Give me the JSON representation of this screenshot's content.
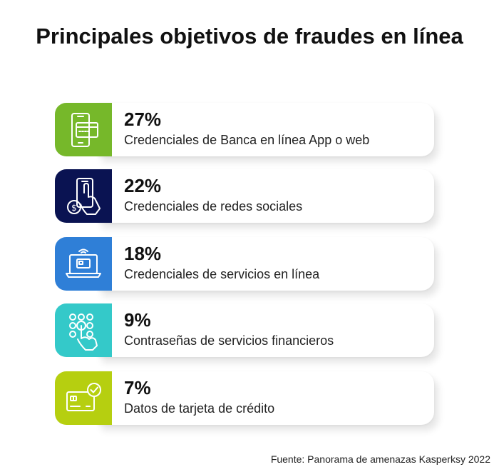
{
  "title": "Principales objetivos de fraudes en línea",
  "source": "Fuente: Panorama de amenazas Kasperksy 2022",
  "chart_data": {
    "type": "bar",
    "title": "Principales objetivos de fraudes en línea",
    "categories": [
      "Credenciales de Banca en línea App o web",
      "Credenciales de redes sociales",
      "Credenciales de servicios en línea",
      "Contraseñas de servicios financieros",
      "Datos de tarjeta de crédito"
    ],
    "values": [
      27,
      22,
      18,
      9,
      7
    ],
    "value_labels": [
      "27%",
      "22%",
      "18%",
      "9%",
      "7%"
    ],
    "unit": "%",
    "items": [
      {
        "value_label": "27%",
        "label": "Credenciales de Banca en línea App o web",
        "color": "#76b82a",
        "icon": "phone-card-icon"
      },
      {
        "value_label": "22%",
        "label": "Credenciales de redes sociales",
        "color": "#0a1352",
        "icon": "hand-phone-dollar-icon"
      },
      {
        "value_label": "18%",
        "label": "Credenciales de servicios en línea",
        "color": "#2f7fd7",
        "icon": "laptop-card-icon"
      },
      {
        "value_label": "9%",
        "label": "Contraseñas de servicios financieros",
        "color": "#34c9c9",
        "icon": "keypad-touch-icon"
      },
      {
        "value_label": "7%",
        "label": "Datos de tarjeta de crédito",
        "color": "#b6cf10",
        "icon": "card-check-icon"
      }
    ]
  }
}
